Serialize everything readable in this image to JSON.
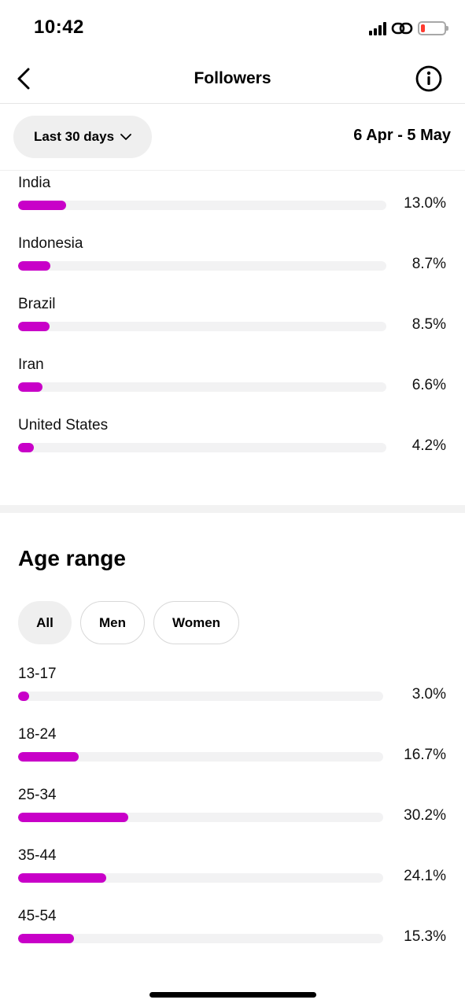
{
  "status_bar": {
    "time": "10:42"
  },
  "header": {
    "title": "Followers"
  },
  "filters": {
    "range_label": "Last 30 days",
    "date_range": "6 Apr - 5 May"
  },
  "countries": [
    {
      "label": "India",
      "value": "13.0%",
      "fraction": 0.13
    },
    {
      "label": "Indonesia",
      "value": "8.7%",
      "fraction": 0.087
    },
    {
      "label": "Brazil",
      "value": "8.5%",
      "fraction": 0.085
    },
    {
      "label": "Iran",
      "value": "6.6%",
      "fraction": 0.066
    },
    {
      "label": "United States",
      "value": "4.2%",
      "fraction": 0.042
    }
  ],
  "age_range": {
    "title": "Age range",
    "tabs": [
      {
        "label": "All",
        "active": true
      },
      {
        "label": "Men",
        "active": false
      },
      {
        "label": "Women",
        "active": false
      }
    ],
    "rows": [
      {
        "label": "13-17",
        "value": "3.0%",
        "fraction": 0.03
      },
      {
        "label": "18-24",
        "value": "16.7%",
        "fraction": 0.167
      },
      {
        "label": "25-34",
        "value": "30.2%",
        "fraction": 0.302
      },
      {
        "label": "35-44",
        "value": "24.1%",
        "fraction": 0.241
      },
      {
        "label": "45-54",
        "value": "15.3%",
        "fraction": 0.153
      }
    ]
  },
  "colors": {
    "accent": "#c800c8",
    "track": "#f2f2f3",
    "battery_low": "#ff3b30"
  },
  "icons": {
    "back": "chevron-left-icon",
    "info": "info-icon",
    "dropdown": "chevron-down-icon"
  }
}
